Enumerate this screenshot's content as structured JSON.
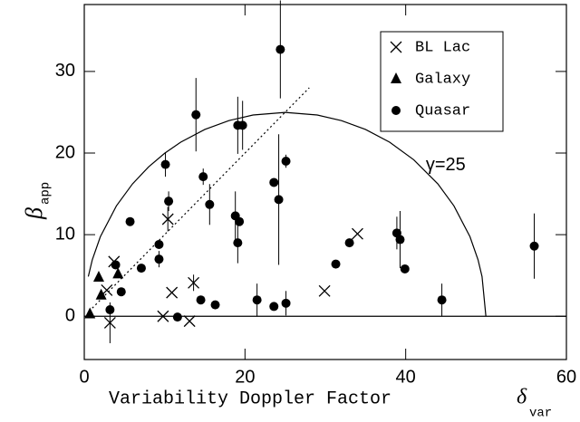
{
  "chart_data": {
    "type": "scatter",
    "x_label": "Variability Doppler Factor",
    "x_symbol": "δ",
    "x_symbol_sub": "var",
    "y_label": "β",
    "y_label_sub": "app",
    "xlim": [
      0,
      60
    ],
    "xticks": [
      0,
      20,
      40,
      60
    ],
    "ylim": [
      -5.3,
      38.2
    ],
    "yticks": [
      0,
      10,
      20,
      30
    ],
    "legend": "upper right",
    "series": [
      {
        "name": "BL Lac",
        "marker": "cross",
        "color": "#000000",
        "x": [
          2.8,
          3.2,
          3.7,
          10.4,
          10.9,
          9.8,
          13.1,
          13.6,
          29.9,
          34.0
        ],
        "values": [
          3.2,
          -0.8,
          6.7,
          11.9,
          2.9,
          0.0,
          -0.6,
          4.1,
          3.1,
          10.1
        ],
        "errors": [
          null,
          2.5,
          null,
          1.5,
          null,
          null,
          null,
          1.0,
          null,
          null
        ]
      },
      {
        "name": "Galaxy",
        "marker": "triangle",
        "color": "#000000",
        "x": [
          0.7,
          1.8,
          2.1,
          4.2
        ],
        "values": [
          0.3,
          4.8,
          2.6,
          5.2
        ],
        "errors": [
          null,
          null,
          null,
          null
        ]
      },
      {
        "name": "Quasar",
        "marker": "circle",
        "color": "#000000",
        "x": [
          3.2,
          3.9,
          4.6,
          5.7,
          7.1,
          9.3,
          9.3,
          10.1,
          10.5,
          11.6,
          13.9,
          14.5,
          14.8,
          15.6,
          16.3,
          19.1,
          19.7,
          18.8,
          19.3,
          19.1,
          21.5,
          23.6,
          23.6,
          24.2,
          24.4,
          25.1,
          25.1,
          31.3,
          33.0,
          38.9,
          39.3,
          39.9,
          44.5,
          56.0
        ],
        "values": [
          0.8,
          6.3,
          3.0,
          11.6,
          5.9,
          8.8,
          7.0,
          18.6,
          14.1,
          -0.1,
          24.7,
          2.0,
          17.1,
          13.7,
          1.4,
          23.4,
          23.4,
          12.3,
          11.6,
          9.0,
          2.0,
          16.4,
          1.2,
          14.3,
          32.7,
          19.0,
          1.6,
          6.4,
          9.0,
          10.2,
          9.4,
          5.8,
          2.0,
          8.6
        ],
        "errors": [
          null,
          null,
          null,
          null,
          null,
          null,
          1.0,
          1.5,
          1.2,
          null,
          4.5,
          null,
          1.0,
          2.5,
          null,
          3.5,
          3.0,
          3.0,
          null,
          2.5,
          2.0,
          null,
          null,
          8.0,
          6.0,
          0.8,
          1.5,
          null,
          null,
          2.0,
          3.5,
          null,
          2.0,
          4.0
        ]
      }
    ],
    "curve": {
      "label": "γ=25",
      "label_x": 42.5,
      "label_y": 18.5,
      "x": [
        0.5,
        1,
        2,
        4,
        6,
        8,
        10,
        12,
        15,
        18,
        21,
        25,
        29,
        32,
        35,
        38,
        41,
        44,
        46,
        48,
        49,
        49.5,
        49.98
      ],
      "values": [
        4.87,
        6.93,
        9.75,
        13.53,
        16.22,
        18.3,
        19.97,
        21.33,
        22.89,
        23.98,
        24.66,
        24.98,
        24.66,
        23.98,
        22.89,
        21.33,
        19.18,
        16.22,
        13.53,
        9.75,
        6.93,
        4.87,
        0
      ]
    },
    "dotted_line": {
      "x": [
        1,
        28
      ],
      "values": [
        1,
        28
      ]
    },
    "reference_line": 0
  }
}
